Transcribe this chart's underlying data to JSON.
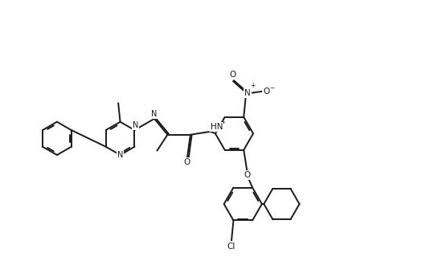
{
  "background_color": "#ffffff",
  "line_color": "#1a1a1a",
  "lw": 1.4,
  "figsize": [
    5.4,
    3.3
  ],
  "dpi": 100,
  "xlim": [
    0,
    10.8
  ],
  "ylim": [
    0,
    6.6
  ]
}
